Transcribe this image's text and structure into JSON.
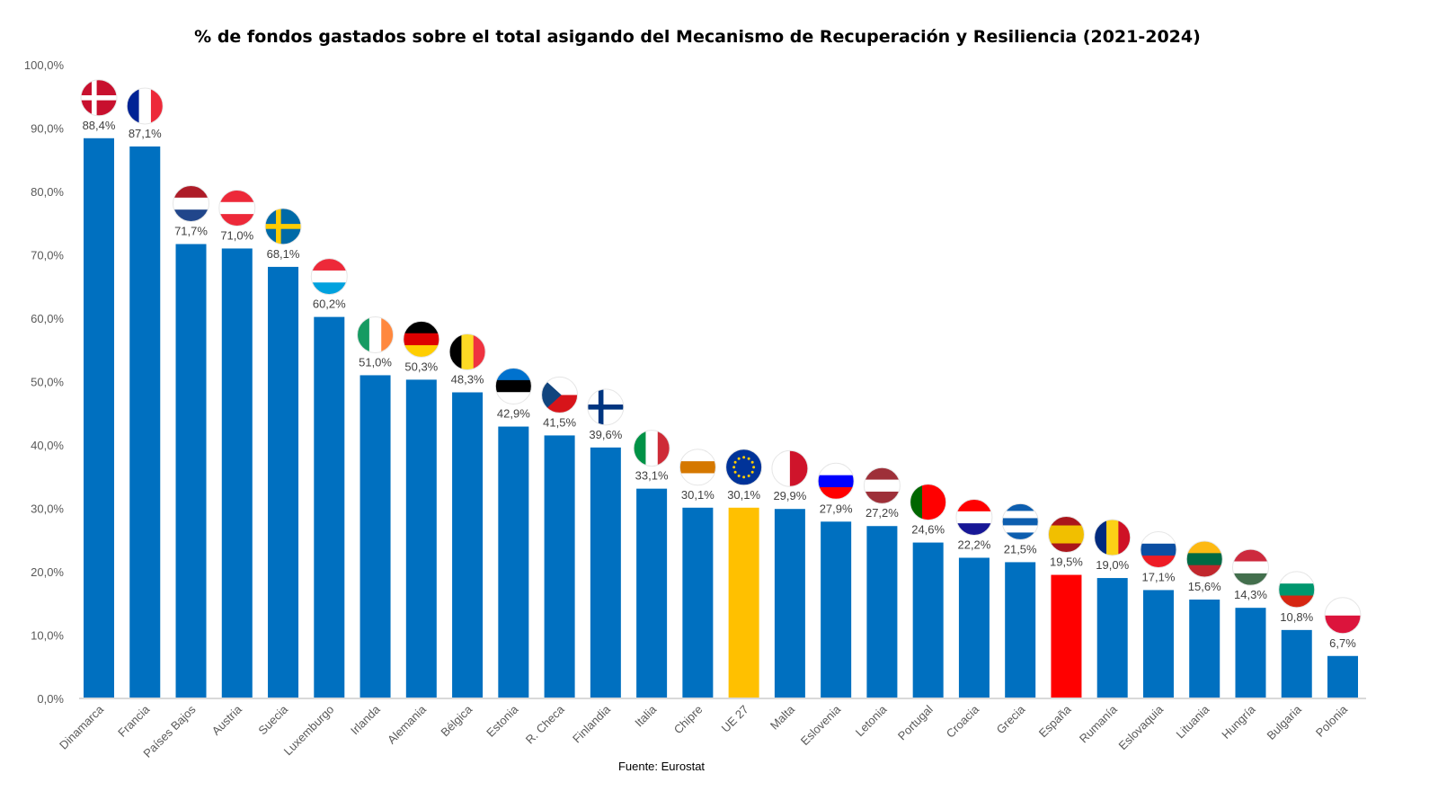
{
  "chart_data": {
    "type": "bar",
    "title": "% de fondos gastados sobre el total asigando del Mecanismo de Recuperación y Resiliencia (2021-2024)",
    "source": "Fuente: Eurostat",
    "xlabel": "",
    "ylabel": "",
    "ylim": [
      0,
      100
    ],
    "yticks": [
      "0,0%",
      "10,0%",
      "20,0%",
      "30,0%",
      "40,0%",
      "50,0%",
      "60,0%",
      "70,0%",
      "80,0%",
      "90,0%",
      "100,0%"
    ],
    "grid": false,
    "legend": "none",
    "colors": {
      "default": "#0070C0",
      "UE 27": "#FFC000",
      "España": "#FF0000"
    },
    "categories": [
      "Dinamarca",
      "Francia",
      "Países Bajos",
      "Austria",
      "Suecia",
      "Luxemburgo",
      "Irlanda",
      "Alemania",
      "Bélgica",
      "Estonia",
      "R. Checa",
      "Finlandia",
      "Italia",
      "Chipre",
      "UE 27",
      "Malta",
      "Eslovenia",
      "Letonia",
      "Portugal",
      "Croacia",
      "Grecia",
      "España",
      "Rumanía",
      "Eslovaquia",
      "Lituania",
      "Hungría",
      "Bulgaria",
      "Polonia"
    ],
    "values": [
      88.4,
      87.1,
      71.7,
      71.0,
      68.1,
      60.2,
      51.0,
      50.3,
      48.3,
      42.9,
      41.5,
      39.6,
      33.1,
      30.1,
      30.1,
      29.9,
      27.9,
      27.2,
      24.6,
      22.2,
      21.5,
      19.5,
      19.0,
      17.1,
      15.6,
      14.3,
      10.8,
      6.7
    ],
    "data_labels": [
      "88,4%",
      "87,1%",
      "71,7%",
      "71,0%",
      "68,1%",
      "60,2%",
      "51,0%",
      "50,3%",
      "48,3%",
      "42,9%",
      "41,5%",
      "39,6%",
      "33,1%",
      "30,1%",
      "30,1%",
      "29,9%",
      "27,9%",
      "27,2%",
      "24,6%",
      "22,2%",
      "21,5%",
      "19,5%",
      "19,0%",
      "17,1%",
      "15,6%",
      "14,3%",
      "10,8%",
      "6,7%"
    ],
    "flags": [
      {
        "dir": "cross",
        "c": [
          "#C8102E",
          "#FFFFFF"
        ]
      },
      {
        "dir": "v",
        "c": [
          "#002395",
          "#FFFFFF",
          "#ED2939"
        ]
      },
      {
        "dir": "h",
        "c": [
          "#AE1C28",
          "#FFFFFF",
          "#21468B"
        ]
      },
      {
        "dir": "h",
        "c": [
          "#ED2939",
          "#FFFFFF",
          "#ED2939"
        ]
      },
      {
        "dir": "cross",
        "c": [
          "#006AA7",
          "#FECC00"
        ]
      },
      {
        "dir": "h",
        "c": [
          "#ED2939",
          "#FFFFFF",
          "#00A1DE"
        ]
      },
      {
        "dir": "v",
        "c": [
          "#169B62",
          "#FFFFFF",
          "#FF883E"
        ]
      },
      {
        "dir": "h",
        "c": [
          "#000000",
          "#DD0000",
          "#FFCE00"
        ]
      },
      {
        "dir": "v",
        "c": [
          "#000000",
          "#FDDA24",
          "#EF3340"
        ]
      },
      {
        "dir": "h",
        "c": [
          "#0072CE",
          "#000000",
          "#FFFFFF"
        ]
      },
      {
        "dir": "czech",
        "c": [
          "#FFFFFF",
          "#D7141A",
          "#11457E"
        ]
      },
      {
        "dir": "cross",
        "c": [
          "#FFFFFF",
          "#003580"
        ]
      },
      {
        "dir": "v",
        "c": [
          "#009246",
          "#FFFFFF",
          "#CE2B37"
        ]
      },
      {
        "dir": "h",
        "c": [
          "#FFFFFF",
          "#D57800",
          "#FFFFFF"
        ]
      },
      {
        "dir": "eu",
        "c": [
          "#003399",
          "#FFCC00"
        ]
      },
      {
        "dir": "v",
        "c": [
          "#FFFFFF",
          "#CF142B"
        ]
      },
      {
        "dir": "h",
        "c": [
          "#FFFFFF",
          "#0000FF",
          "#FF0000"
        ]
      },
      {
        "dir": "h",
        "c": [
          "#9E3039",
          "#FFFFFF",
          "#9E3039"
        ]
      },
      {
        "dir": "v",
        "c": [
          "#006600",
          "#FF0000",
          "#FF0000"
        ]
      },
      {
        "dir": "h",
        "c": [
          "#FF0000",
          "#FFFFFF",
          "#171796"
        ]
      },
      {
        "dir": "h",
        "c": [
          "#0D5EAF",
          "#FFFFFF",
          "#0D5EAF",
          "#FFFFFF",
          "#0D5EAF"
        ]
      },
      {
        "dir": "h",
        "c": [
          "#AA151B",
          "#F1BF00",
          "#F1BF00",
          "#AA151B"
        ]
      },
      {
        "dir": "v",
        "c": [
          "#002B7F",
          "#FCD116",
          "#CE1126"
        ]
      },
      {
        "dir": "h",
        "c": [
          "#FFFFFF",
          "#0B4EA2",
          "#EE1C25"
        ]
      },
      {
        "dir": "h",
        "c": [
          "#FDB913",
          "#006A44",
          "#C1272D"
        ]
      },
      {
        "dir": "h",
        "c": [
          "#CD2A3E",
          "#FFFFFF",
          "#436F4D"
        ]
      },
      {
        "dir": "h",
        "c": [
          "#FFFFFF",
          "#00966E",
          "#D62612"
        ]
      },
      {
        "dir": "h",
        "c": [
          "#FFFFFF",
          "#DC143C"
        ]
      }
    ]
  }
}
